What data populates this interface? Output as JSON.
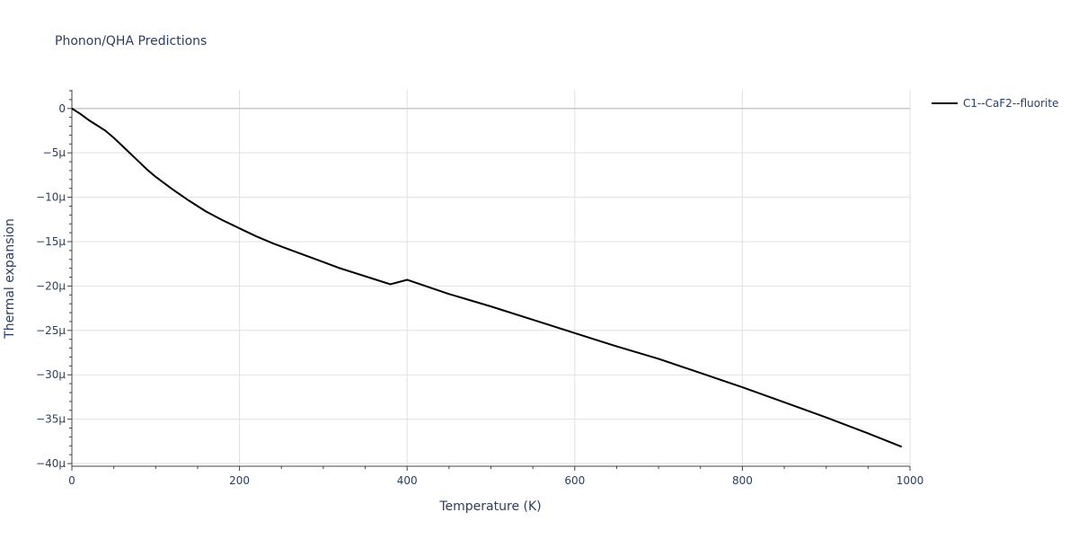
{
  "chart_data": {
    "type": "line",
    "title": "Phonon/QHA Predictions",
    "xlabel": "Temperature (K)",
    "ylabel": "Thermal expansion",
    "xlim": [
      0,
      1000
    ],
    "ylim": [
      -40.3,
      2.1
    ],
    "x_ticks": [
      0,
      200,
      400,
      600,
      800,
      1000
    ],
    "y_ticks": [
      0,
      -5,
      -10,
      -15,
      -20,
      -25,
      -30,
      -35,
      -40
    ],
    "y_tick_labels": [
      "0",
      "−5μ",
      "−10μ",
      "−15μ",
      "−20μ",
      "−25μ",
      "−30μ",
      "−35μ",
      "−40μ"
    ],
    "grid": true,
    "legend_position": "top-right",
    "series": [
      {
        "name": "C1--CaF2--fluorite",
        "color": "#000000",
        "x": [
          0,
          10,
          20,
          30,
          40,
          50,
          60,
          70,
          80,
          90,
          100,
          120,
          140,
          160,
          180,
          200,
          220,
          240,
          260,
          280,
          300,
          320,
          340,
          360,
          380,
          400,
          450,
          500,
          550,
          600,
          650,
          700,
          750,
          800,
          850,
          900,
          950,
          990
        ],
        "y": [
          0,
          -0.6,
          -1.3,
          -1.9,
          -2.5,
          -3.3,
          -4.2,
          -5.1,
          -6.0,
          -6.9,
          -7.7,
          -9.1,
          -10.4,
          -11.6,
          -12.6,
          -13.5,
          -14.4,
          -15.2,
          -15.9,
          -16.6,
          -17.3,
          -18.0,
          -18.6,
          -19.2,
          -19.8,
          -19.3,
          -20.9,
          -22.3,
          -23.8,
          -25.3,
          -26.8,
          -28.2,
          -29.8,
          -31.4,
          -33.1,
          -34.8,
          -36.6,
          -38.1
        ]
      }
    ]
  }
}
